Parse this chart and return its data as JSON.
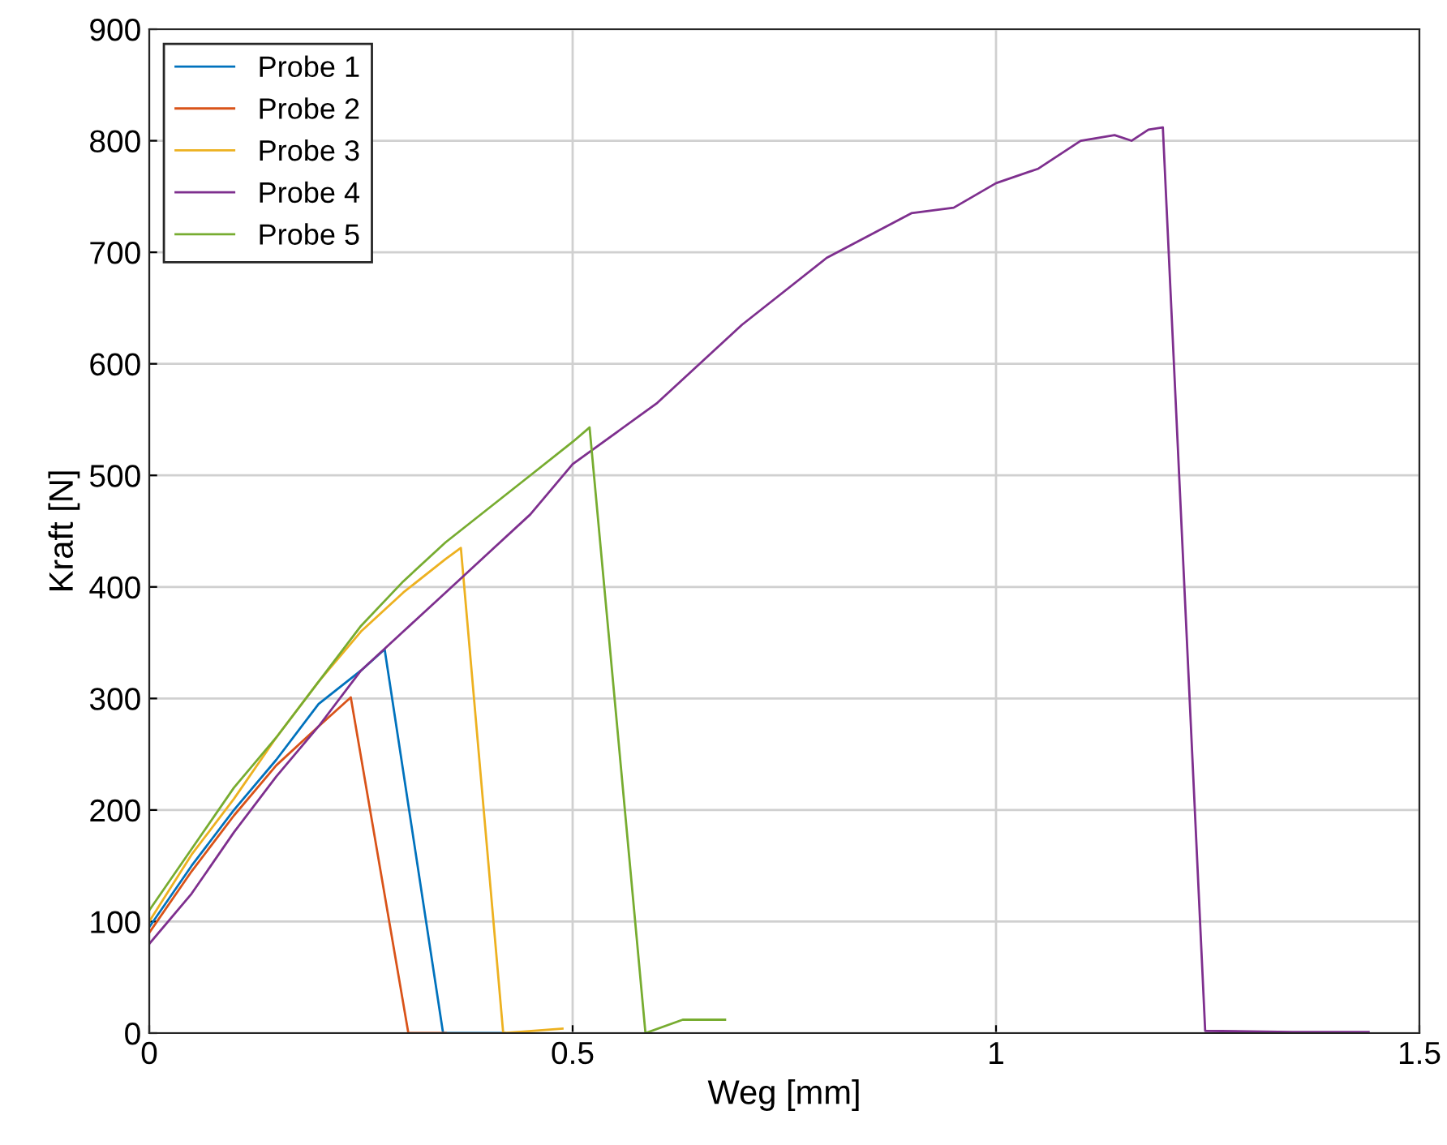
{
  "chart_data": {
    "type": "line",
    "xlabel": "Weg [mm]",
    "ylabel": "Kraft [N]",
    "xlim": [
      0,
      1.5
    ],
    "ylim": [
      0,
      900
    ],
    "xticks": [
      0,
      0.5,
      1,
      1.5
    ],
    "yticks": [
      0,
      100,
      200,
      300,
      400,
      500,
      600,
      700,
      800,
      900
    ],
    "grid": true,
    "legend": "top left",
    "marker": "none",
    "line_style": "solid",
    "series": [
      {
        "name": "Probe 1",
        "color": "#0072bd",
        "x": [
          0,
          0.05,
          0.1,
          0.15,
          0.2,
          0.25,
          0.278,
          0.347,
          0.42
        ],
        "values": [
          95,
          150,
          200,
          245,
          295,
          325,
          344,
          0,
          0
        ]
      },
      {
        "name": "Probe 2",
        "color": "#d95319",
        "x": [
          0,
          0.05,
          0.1,
          0.15,
          0.2,
          0.238,
          0.306,
          0.35
        ],
        "values": [
          90,
          145,
          195,
          240,
          275,
          301,
          0,
          0
        ]
      },
      {
        "name": "Probe 3",
        "color": "#edb120",
        "x": [
          0,
          0.05,
          0.1,
          0.15,
          0.2,
          0.25,
          0.3,
          0.35,
          0.368,
          0.418,
          0.488
        ],
        "values": [
          100,
          160,
          210,
          265,
          315,
          360,
          395,
          425,
          435,
          0,
          4
        ]
      },
      {
        "name": "Probe 4",
        "color": "#7e2f8e",
        "x": [
          0,
          0.05,
          0.1,
          0.15,
          0.2,
          0.25,
          0.3,
          0.35,
          0.4,
          0.45,
          0.5,
          0.6,
          0.7,
          0.8,
          0.9,
          0.95,
          1.0,
          1.05,
          1.1,
          1.14,
          1.16,
          1.18,
          1.197,
          1.247,
          1.35,
          1.44
        ],
        "values": [
          80,
          125,
          180,
          230,
          275,
          325,
          360,
          395,
          430,
          465,
          510,
          565,
          635,
          695,
          735,
          740,
          762,
          775,
          800,
          805,
          800,
          810,
          812,
          2,
          1,
          1
        ]
      },
      {
        "name": "Probe 5",
        "color": "#77ac30",
        "x": [
          0,
          0.05,
          0.1,
          0.15,
          0.2,
          0.25,
          0.3,
          0.35,
          0.4,
          0.45,
          0.5,
          0.52,
          0.586,
          0.63,
          0.68
        ],
        "values": [
          110,
          165,
          220,
          265,
          315,
          365,
          405,
          440,
          470,
          500,
          530,
          543,
          0,
          12,
          12
        ]
      }
    ]
  }
}
